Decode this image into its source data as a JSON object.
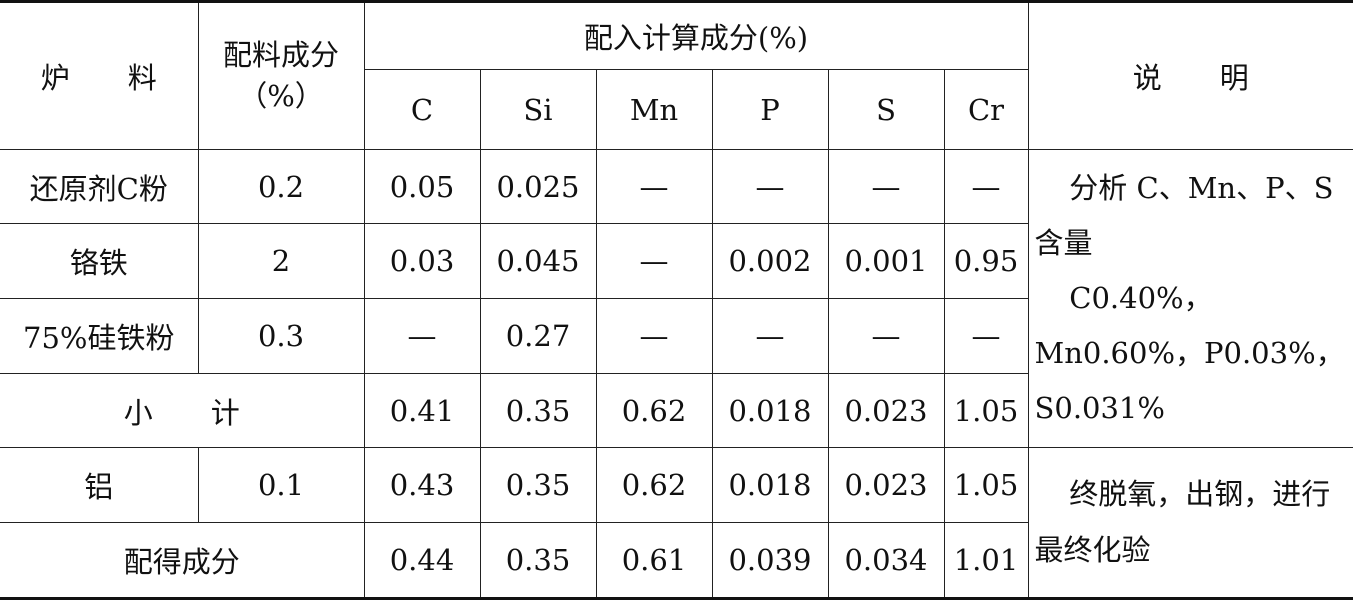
{
  "table": {
    "header": {
      "material": "炉　　料",
      "ratio": "配料成分（%）",
      "group": "配入计算成分(%)",
      "elements": [
        "C",
        "Si",
        "Mn",
        "P",
        "S",
        "Cr"
      ],
      "note": "说　　明"
    },
    "rows": [
      {
        "label": "还原剂C粉",
        "ratio": "0.2",
        "values": [
          "0.05",
          "0.025",
          "—",
          "—",
          "—",
          "—"
        ]
      },
      {
        "label": "铬铁",
        "ratio": "2",
        "values": [
          "0.03",
          "0.045",
          "—",
          "0.002",
          "0.001",
          "0.95"
        ]
      },
      {
        "label": "75%硅铁粉",
        "ratio": "0.3",
        "values": [
          "—",
          "0.27",
          "—",
          "—",
          "—",
          "—"
        ]
      },
      {
        "label": "小　　计",
        "values": [
          "0.41",
          "0.35",
          "0.62",
          "0.018",
          "0.023",
          "1.05"
        ]
      },
      {
        "label": "铝",
        "ratio": "0.1",
        "values": [
          "0.43",
          "0.35",
          "0.62",
          "0.018",
          "0.023",
          "1.05"
        ]
      },
      {
        "label": "配得成分",
        "values": [
          "0.44",
          "0.35",
          "0.61",
          "0.039",
          "0.034",
          "1.01"
        ]
      }
    ],
    "notes": [
      [
        "分析 C、Mn、P、S 含量",
        "C0.40%，Mn0.60%，P0.03%，S0.031%"
      ],
      [
        "终脱氧，出钢，进行最终化验"
      ]
    ]
  }
}
